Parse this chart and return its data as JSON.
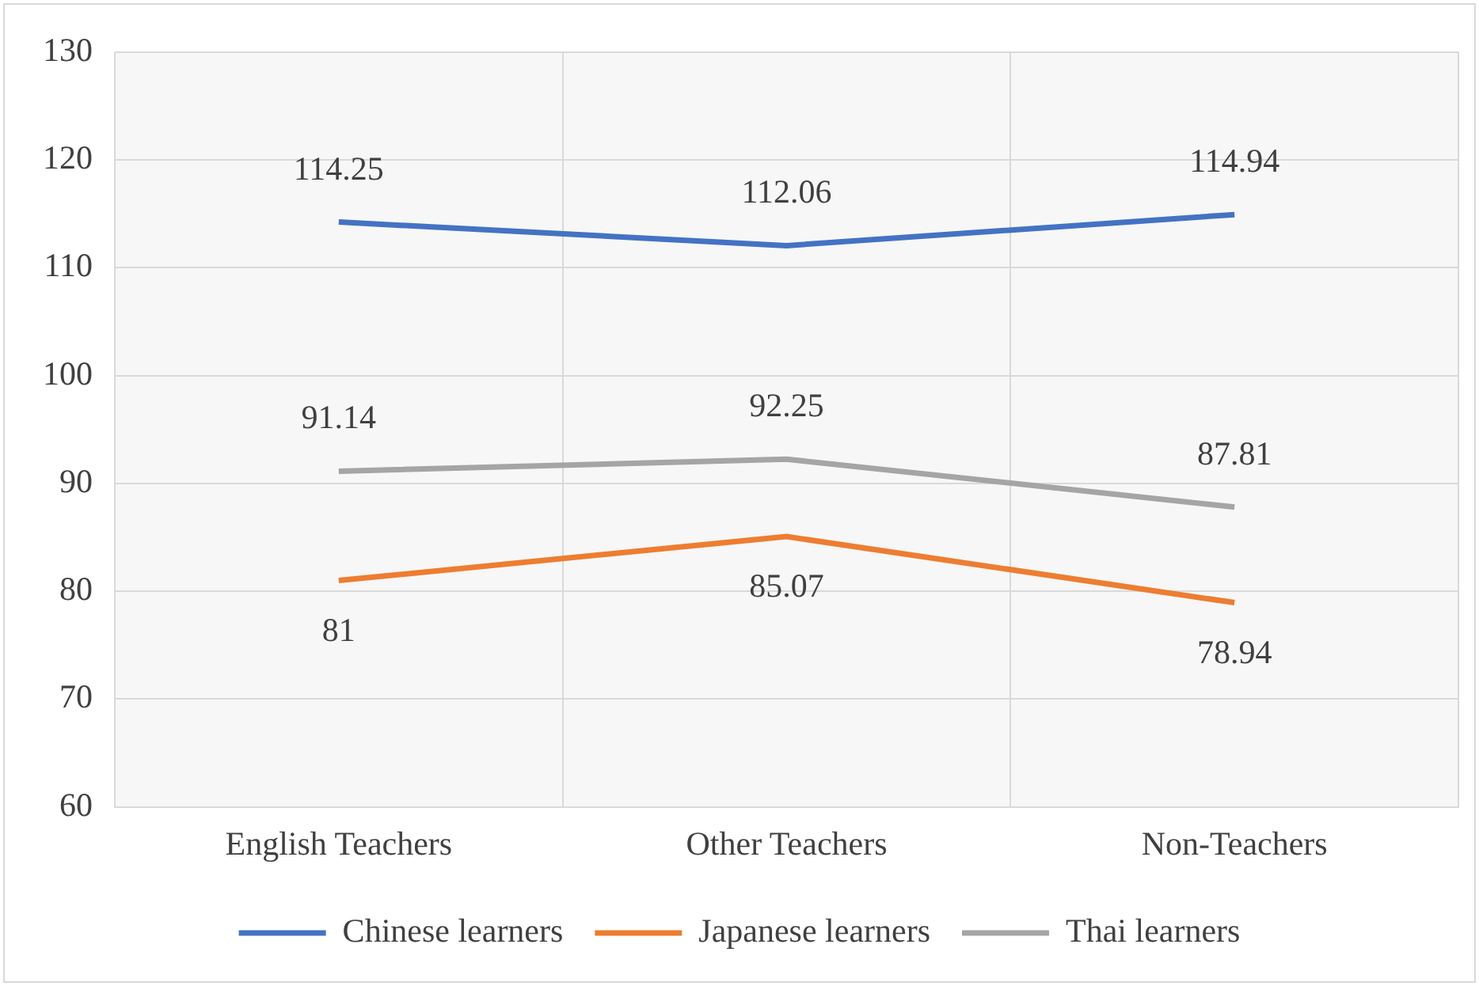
{
  "chart_data": {
    "type": "line",
    "categories": [
      "English Teachers",
      "Other Teachers",
      "Non-Teachers"
    ],
    "series": [
      {
        "name": "Chinese learners",
        "color": "#4472c4",
        "values": [
          114.25,
          112.06,
          114.94
        ]
      },
      {
        "name": "Japanese learners",
        "color": "#ed7d31",
        "values": [
          81,
          85.07,
          78.94
        ]
      },
      {
        "name": "Thai learners",
        "color": "#a5a5a5",
        "values": [
          91.14,
          92.25,
          87.81
        ]
      }
    ],
    "ylim": [
      60,
      130
    ],
    "yticks": [
      60,
      70,
      80,
      90,
      100,
      110,
      120,
      130
    ],
    "grid": true,
    "legend": "bottom",
    "data_labels": true,
    "marker": "none",
    "line_style": "solid"
  }
}
